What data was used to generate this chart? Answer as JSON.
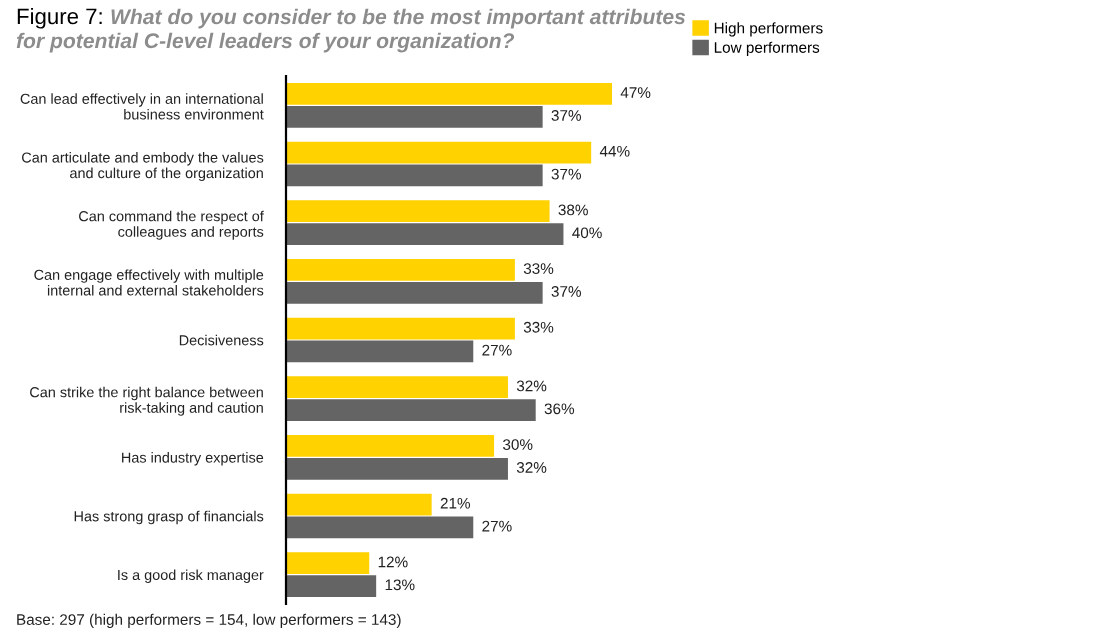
{
  "chart_data": {
    "type": "bar",
    "orientation": "horizontal",
    "title": "Figure 7:",
    "subtitle": "What do you consider to be the most important attributes\nfor potential C-level leaders of your organization?",
    "categories": [
      "Can lead effectively in an international\nbusiness environment",
      "Can articulate and embody the values\nand culture of the organization",
      "Can command the respect of\ncolleagues and reports",
      "Can engage effectively with multiple\ninternal and external stakeholders",
      "Decisiveness",
      "Can strike the right balance between\nrisk-taking and caution",
      "Has industry expertise",
      "Has strong grasp of financials",
      "Is a good risk manager"
    ],
    "series": [
      {
        "name": "High performers",
        "color": "#ffd200",
        "values": [
          47,
          44,
          38,
          33,
          33,
          32,
          30,
          21,
          12
        ],
        "value_labels": [
          "47%",
          "44%",
          "38%",
          "33%",
          "33%",
          "32%",
          "30%",
          "21%",
          "12%"
        ]
      },
      {
        "name": "Low performers",
        "color": "#646464",
        "values": [
          37,
          37,
          40,
          37,
          27,
          36,
          32,
          27,
          13
        ],
        "value_labels": [
          "37%",
          "37%",
          "40%",
          "37%",
          "27%",
          "36%",
          "32%",
          "27%",
          "13%"
        ]
      }
    ],
    "legend": "top right",
    "grid": false,
    "tick_labels": "y",
    "annotations": [
      "Base: 297 (high performers = 154, low performers = 143)"
    ]
  }
}
